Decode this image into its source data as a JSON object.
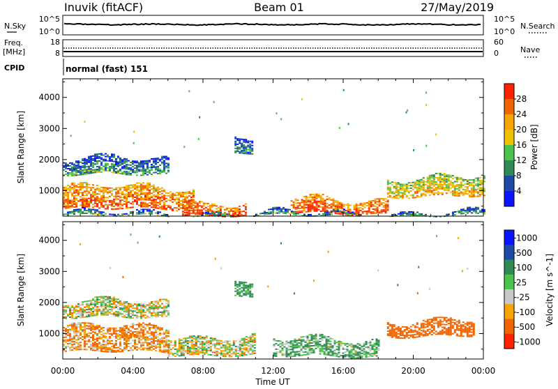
{
  "header": {
    "station": "Inuvik (fitACF)",
    "beam": "Beam 01",
    "date": "27/May/2019"
  },
  "top_panels": {
    "nsky": {
      "left_label": "N.Sky",
      "right_label": "N.Search",
      "left_ticks": [
        "10^5",
        "10^0"
      ],
      "right_ticks": [
        "10^5",
        "10^0"
      ]
    },
    "freq": {
      "left_label_1": "Freq.",
      "left_label_2": "[MHz]",
      "right_label": "Nave",
      "left_ticks": [
        "18",
        "8"
      ],
      "right_ticks": [
        "60",
        "0"
      ]
    },
    "cpid": {
      "label": "CPID",
      "value": "normal (fast) 151"
    }
  },
  "chart_data": [
    {
      "type": "heatmap",
      "title": "Power",
      "xlabel": "Time UT",
      "ylabel": "Slant Range [km]",
      "x_ticks": [
        "00:00",
        "04:00",
        "08:00",
        "12:00",
        "16:00",
        "20:00",
        "00:00"
      ],
      "xlim_hours": [
        0,
        24
      ],
      "y_ticks": [
        1000,
        2000,
        3000,
        4000
      ],
      "ylim": [
        180,
        4600
      ],
      "colorbar": {
        "label": "Power [dB]",
        "range": [
          0,
          32
        ],
        "ticks": [
          "4",
          "8",
          "12",
          "16",
          "20",
          "24",
          "28"
        ],
        "colors": [
          "#0a14ff",
          "#1c4aa8",
          "#2e8b57",
          "#4cc44c",
          "#f2c200",
          "#f7a300",
          "#f06500",
          "#ff2200"
        ]
      },
      "echo_regions": [
        {
          "start_h": 0,
          "end_h": 7.5,
          "range_lo_km": 400,
          "range_hi_km": 1100,
          "power_db": 28
        },
        {
          "start_h": 6.8,
          "end_h": 10.5,
          "range_lo_km": 200,
          "range_hi_km": 600,
          "power_db": 30
        },
        {
          "start_h": 13,
          "end_h": 18.5,
          "range_lo_km": 250,
          "range_hi_km": 700,
          "power_db": 30
        },
        {
          "start_h": 18.5,
          "end_h": 24,
          "range_lo_km": 800,
          "range_hi_km": 1400,
          "power_db": 22
        },
        {
          "start_h": 0,
          "end_h": 6,
          "range_lo_km": 1500,
          "range_hi_km": 2000,
          "power_db": 12
        },
        {
          "start_h": 9.8,
          "end_h": 10.8,
          "range_lo_km": 2200,
          "range_hi_km": 2700,
          "power_db": 10
        },
        {
          "start_h": 0,
          "end_h": 24,
          "range_lo_km": 180,
          "range_hi_km": 260,
          "power_db": 12
        }
      ]
    },
    {
      "type": "heatmap",
      "title": "Velocity",
      "xlabel": "Time UT",
      "ylabel": "Slant Range [km]",
      "x_ticks": [
        "00:00",
        "04:00",
        "08:00",
        "12:00",
        "16:00",
        "20:00",
        "00:00"
      ],
      "xlim_hours": [
        0,
        24
      ],
      "y_ticks": [
        1000,
        2000,
        3000,
        4000
      ],
      "ylim": [
        180,
        4600
      ],
      "colorbar": {
        "label": "Velocity [m s^-1]",
        "ticks": [
          "1000",
          "500",
          "100",
          "25",
          "-25",
          "-100",
          "-500",
          "-1000"
        ],
        "colors": [
          "#0a14ff",
          "#1c4aa8",
          "#2e8b57",
          "#4cc44c",
          "#c8c8c8",
          "#f7a300",
          "#f06500",
          "#ff2200"
        ]
      },
      "echo_regions": [
        {
          "start_h": 0,
          "end_h": 6,
          "range_lo_km": 400,
          "range_hi_km": 1200,
          "velocity_ms": -100
        },
        {
          "start_h": 6,
          "end_h": 11,
          "range_lo_km": 300,
          "range_hi_km": 900,
          "velocity_ms": 0
        },
        {
          "start_h": 12,
          "end_h": 18,
          "range_lo_km": 250,
          "range_hi_km": 800,
          "velocity_ms": 100
        },
        {
          "start_h": 18.5,
          "end_h": 23.5,
          "range_lo_km": 900,
          "range_hi_km": 1400,
          "velocity_ms": -300
        },
        {
          "start_h": 0,
          "end_h": 6,
          "range_lo_km": 1500,
          "range_hi_km": 2000,
          "velocity_ms": 0
        },
        {
          "start_h": 9.8,
          "end_h": 10.8,
          "range_lo_km": 2200,
          "range_hi_km": 2700,
          "velocity_ms": 150
        }
      ]
    }
  ]
}
